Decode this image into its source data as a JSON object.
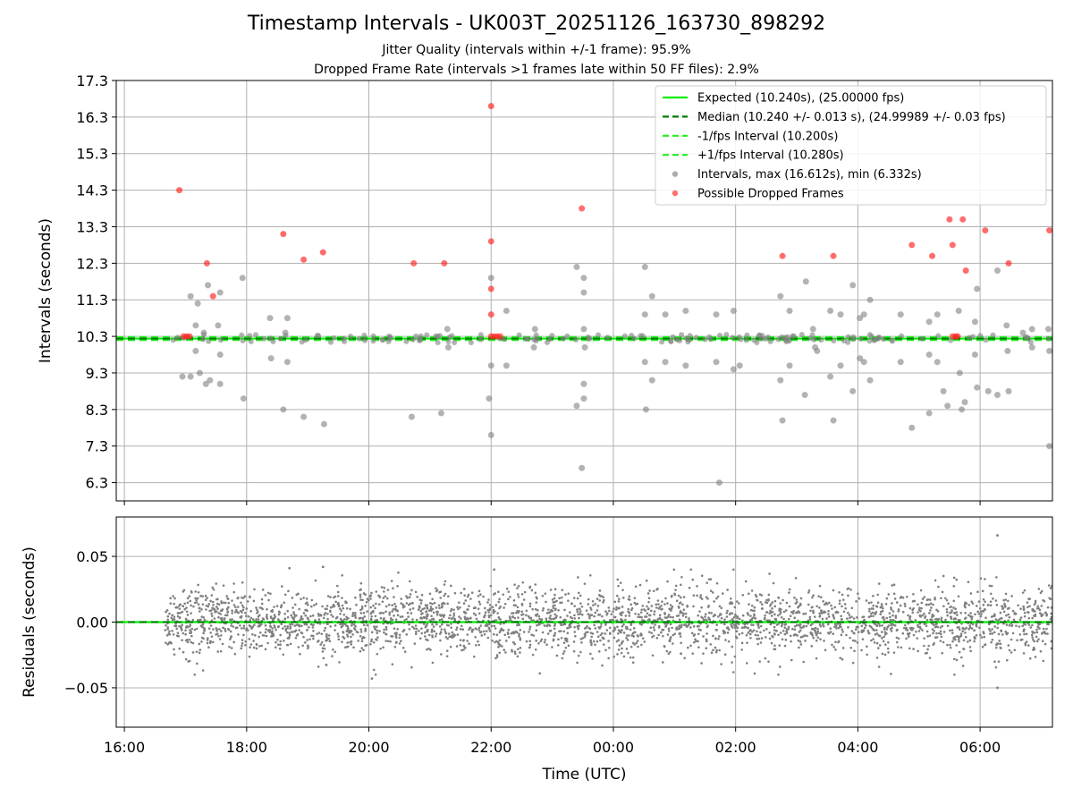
{
  "page": {
    "title": "Timestamp Intervals - UK003T_20251126_163730_898292",
    "subtitle1": "Jitter Quality (intervals within +/-1 frame): 95.9%",
    "subtitle2": "Dropped Frame Rate (intervals >1 frames late within 50 FF files): 2.9%"
  },
  "colors": {
    "expected": "#00ee00",
    "median": "#007a00",
    "fps_band": "#22ee22",
    "intervals": "#808080",
    "dropped": "#ff2020",
    "grid": "#b0b0b0"
  },
  "chart_data": [
    {
      "type": "scatter",
      "title": "Timestamp Intervals - UK003T_20251126_163730_898292",
      "xlabel": "Time (UTC)",
      "ylabel": "Intervals (seconds)",
      "xlim": [
        "2025-11-26 15:52",
        "2025-11-27 07:11"
      ],
      "ylim": [
        5.8,
        17.3
      ],
      "x_ticks": [
        "16:00",
        "18:00",
        "20:00",
        "22:00",
        "00:00",
        "02:00",
        "04:00",
        "06:00"
      ],
      "y_ticks": [
        "6.3",
        "7.3",
        "8.3",
        "9.3",
        "10.3",
        "11.3",
        "12.3",
        "13.3",
        "14.3",
        "15.3",
        "16.3",
        "17.3"
      ],
      "grid": true,
      "legend_position": "top-right",
      "legend": [
        "Expected (10.240s), (25.00000 fps)",
        "Median (10.240 +/- 0.013 s), (24.99989 +/- 0.03 fps)",
        "-1/fps Interval (10.200s)",
        "+1/fps Interval (10.280s)",
        "Intervals, max (16.612s), min (6.332s)",
        "Possible Dropped Frames"
      ],
      "reference_lines": [
        {
          "name": "Expected",
          "y": 10.24,
          "style": "solid"
        },
        {
          "name": "Median",
          "y": 10.24,
          "style": "dashed"
        },
        {
          "name": "-1/fps Interval",
          "y": 10.2,
          "style": "dashed"
        },
        {
          "name": "+1/fps Interval",
          "y": 10.28,
          "style": "dashed"
        }
      ],
      "series": [
        {
          "name": "Intervals, max (16.612s), min (6.332s)",
          "points": [
            [
              "2025-11-26 17:05",
              11.4
            ],
            [
              "2025-11-26 17:12",
              11.2
            ],
            [
              "2025-11-26 17:22",
              11.7
            ],
            [
              "2025-11-26 17:34",
              11.5
            ],
            [
              "2025-11-26 17:56",
              11.9
            ],
            [
              "2025-11-26 17:10",
              10.6
            ],
            [
              "2025-11-26 17:32",
              10.6
            ],
            [
              "2025-11-26 17:18",
              10.4
            ],
            [
              "2025-11-26 16:57",
              9.2
            ],
            [
              "2025-11-26 17:05",
              9.2
            ],
            [
              "2025-11-26 17:10",
              9.9
            ],
            [
              "2025-11-26 17:14",
              9.3
            ],
            [
              "2025-11-26 17:20",
              9.0
            ],
            [
              "2025-11-26 17:24",
              9.1
            ],
            [
              "2025-11-26 17:34",
              9.8
            ],
            [
              "2025-11-26 17:34",
              9.0
            ],
            [
              "2025-11-26 17:57",
              8.6
            ],
            [
              "2025-11-26 18:23",
              10.8
            ],
            [
              "2025-11-26 18:24",
              9.7
            ],
            [
              "2025-11-26 18:36",
              8.3
            ],
            [
              "2025-11-26 18:40",
              10.8
            ],
            [
              "2025-11-26 18:40",
              9.6
            ],
            [
              "2025-11-26 18:56",
              8.1
            ],
            [
              "2025-11-26 19:16",
              7.9
            ],
            [
              "2025-11-26 18:38",
              10.4
            ],
            [
              "2025-11-26 20:42",
              8.1
            ],
            [
              "2025-11-26 21:11",
              8.2
            ],
            [
              "2025-11-26 21:17",
              10.5
            ],
            [
              "2025-11-26 21:18",
              10.0
            ],
            [
              "2025-11-26 22:00",
              11.9
            ],
            [
              "2025-11-26 22:00",
              9.5
            ],
            [
              "2025-11-26 21:58",
              8.6
            ],
            [
              "2025-11-26 22:00",
              7.6
            ],
            [
              "2025-11-26 22:15",
              11.0
            ],
            [
              "2025-11-26 22:15",
              9.5
            ],
            [
              "2025-11-26 22:43",
              10.5
            ],
            [
              "2025-11-26 22:42",
              10.0
            ],
            [
              "2025-11-26 23:24",
              12.2
            ],
            [
              "2025-11-26 23:24",
              8.4
            ],
            [
              "2025-11-26 23:29",
              6.7
            ],
            [
              "2025-11-26 23:31",
              11.9
            ],
            [
              "2025-11-26 23:31",
              11.5
            ],
            [
              "2025-11-26 23:31",
              10.5
            ],
            [
              "2025-11-26 23:32",
              10.0
            ],
            [
              "2025-11-26 23:31",
              9.0
            ],
            [
              "2025-11-26 23:31",
              8.6
            ],
            [
              "2025-11-27 00:31",
              12.2
            ],
            [
              "2025-11-27 00:31",
              10.9
            ],
            [
              "2025-11-27 00:31",
              9.6
            ],
            [
              "2025-11-27 00:32",
              8.3
            ],
            [
              "2025-11-27 00:38",
              11.4
            ],
            [
              "2025-11-27 00:38",
              9.1
            ],
            [
              "2025-11-27 00:51",
              10.9
            ],
            [
              "2025-11-27 00:51",
              9.6
            ],
            [
              "2025-11-27 01:11",
              11.0
            ],
            [
              "2025-11-27 01:11",
              9.5
            ],
            [
              "2025-11-27 01:41",
              10.9
            ],
            [
              "2025-11-27 01:41",
              9.6
            ],
            [
              "2025-11-27 01:44",
              6.3
            ],
            [
              "2025-11-27 01:58",
              11.0
            ],
            [
              "2025-11-27 01:58",
              9.4
            ],
            [
              "2025-11-27 02:04",
              9.5
            ],
            [
              "2025-11-27 02:44",
              11.4
            ],
            [
              "2025-11-27 02:44",
              9.1
            ],
            [
              "2025-11-27 02:46",
              8.0
            ],
            [
              "2025-11-27 02:53",
              11.0
            ],
            [
              "2025-11-27 02:53",
              9.5
            ],
            [
              "2025-11-27 03:09",
              11.8
            ],
            [
              "2025-11-27 03:08",
              8.7
            ],
            [
              "2025-11-27 03:16",
              10.5
            ],
            [
              "2025-11-27 03:18",
              10.0
            ],
            [
              "2025-11-27 03:20",
              9.9
            ],
            [
              "2025-11-27 03:33",
              11.0
            ],
            [
              "2025-11-27 03:33",
              9.2
            ],
            [
              "2025-11-27 03:36",
              8.0
            ],
            [
              "2025-11-27 03:43",
              10.9
            ],
            [
              "2025-11-27 03:43",
              9.5
            ],
            [
              "2025-11-27 03:55",
              11.7
            ],
            [
              "2025-11-27 03:55",
              8.8
            ],
            [
              "2025-11-27 04:02",
              10.8
            ],
            [
              "2025-11-27 04:02",
              9.7
            ],
            [
              "2025-11-27 04:06",
              10.9
            ],
            [
              "2025-11-27 04:06",
              9.6
            ],
            [
              "2025-11-27 04:12",
              11.3
            ],
            [
              "2025-11-27 04:12",
              9.1
            ],
            [
              "2025-11-27 04:42",
              10.9
            ],
            [
              "2025-11-27 04:42",
              9.6
            ],
            [
              "2025-11-27 04:53",
              7.8
            ],
            [
              "2025-11-27 05:10",
              10.7
            ],
            [
              "2025-11-27 05:10",
              9.8
            ],
            [
              "2025-11-27 05:10",
              8.2
            ],
            [
              "2025-11-27 05:18",
              10.9
            ],
            [
              "2025-11-27 05:18",
              9.6
            ],
            [
              "2025-11-27 05:24",
              8.8
            ],
            [
              "2025-11-27 05:28",
              8.4
            ],
            [
              "2025-11-27 05:39",
              11.0
            ],
            [
              "2025-11-27 05:40",
              9.3
            ],
            [
              "2025-11-27 05:45",
              8.5
            ],
            [
              "2025-11-27 05:42",
              8.3
            ],
            [
              "2025-11-27 05:57",
              11.6
            ],
            [
              "2025-11-27 05:57",
              8.9
            ],
            [
              "2025-11-27 05:55",
              10.7
            ],
            [
              "2025-11-27 05:55",
              9.8
            ],
            [
              "2025-11-27 06:08",
              8.8
            ],
            [
              "2025-11-27 06:17",
              12.1
            ],
            [
              "2025-11-27 06:17",
              8.7
            ],
            [
              "2025-11-27 06:26",
              10.6
            ],
            [
              "2025-11-27 06:27",
              9.9
            ],
            [
              "2025-11-27 06:28",
              8.8
            ],
            [
              "2025-11-27 06:42",
              10.4
            ],
            [
              "2025-11-27 06:51",
              10.5
            ],
            [
              "2025-11-27 06:51",
              10.0
            ],
            [
              "2025-11-27 07:07",
              10.5
            ],
            [
              "2025-11-27 07:08",
              9.9
            ],
            [
              "2025-11-27 07:08",
              7.3
            ]
          ]
        },
        {
          "name": "Possible Dropped Frames",
          "points": [
            [
              "2025-11-26 16:54",
              14.3
            ],
            [
              "2025-11-26 17:21",
              12.3
            ],
            [
              "2025-11-26 17:27",
              11.4
            ],
            [
              "2025-11-26 18:36",
              13.1
            ],
            [
              "2025-11-26 18:56",
              12.4
            ],
            [
              "2025-11-26 19:15",
              12.6
            ],
            [
              "2025-11-26 20:44",
              12.3
            ],
            [
              "2025-11-26 21:14",
              12.3
            ],
            [
              "2025-11-26 22:00",
              16.6
            ],
            [
              "2025-11-26 22:00",
              12.9
            ],
            [
              "2025-11-26 22:00",
              11.6
            ],
            [
              "2025-11-26 22:00",
              10.9
            ],
            [
              "2025-11-26 23:29",
              13.8
            ],
            [
              "2025-11-27 02:46",
              12.5
            ],
            [
              "2025-11-27 03:36",
              12.5
            ],
            [
              "2025-11-27 04:53",
              12.8
            ],
            [
              "2025-11-27 05:13",
              12.5
            ],
            [
              "2025-11-27 05:30",
              13.5
            ],
            [
              "2025-11-27 05:33",
              12.8
            ],
            [
              "2025-11-27 05:43",
              13.5
            ],
            [
              "2025-11-27 05:46",
              12.1
            ],
            [
              "2025-11-27 06:05",
              13.2
            ],
            [
              "2025-11-27 06:28",
              12.3
            ],
            [
              "2025-11-27 07:08",
              13.2
            ],
            [
              "2025-11-26 16:58",
              10.3
            ],
            [
              "2025-11-26 17:01",
              10.3
            ],
            [
              "2025-11-26 17:04",
              10.3
            ],
            [
              "2025-11-26 22:00",
              10.3
            ],
            [
              "2025-11-26 22:03",
              10.3
            ],
            [
              "2025-11-26 22:06",
              10.3
            ],
            [
              "2025-11-26 22:09",
              10.3
            ],
            [
              "2025-11-27 05:33",
              10.3
            ],
            [
              "2025-11-27 05:36",
              10.3
            ],
            [
              "2025-11-27 05:38",
              10.3
            ]
          ]
        }
      ]
    },
    {
      "type": "scatter",
      "xlabel": "Time (UTC)",
      "ylabel": "Residuals (seconds)",
      "xlim": [
        "2025-11-26 15:52",
        "2025-11-27 07:11"
      ],
      "ylim": [
        -0.08,
        0.08
      ],
      "x_ticks": [
        "16:00",
        "18:00",
        "20:00",
        "22:00",
        "00:00",
        "02:00",
        "04:00",
        "06:00"
      ],
      "y_ticks": [
        "−0.05",
        "0.00",
        "0.05"
      ],
      "grid": true,
      "reference_lines": [
        {
          "name": "Zero",
          "y": 0.0,
          "style": "dashed"
        }
      ],
      "series": [
        {
          "name": "Residuals",
          "x_range": [
            "2025-11-26 16:40",
            "2025-11-27 07:11"
          ],
          "sample_count": 3200,
          "std": 0.013,
          "outliers": [
            [
              "2025-11-27 06:17",
              0.066
            ],
            [
              "2025-11-27 06:17",
              -0.05
            ],
            [
              "2025-11-26 20:03",
              -0.043
            ],
            [
              "2025-11-26 22:03",
              0.04
            ],
            [
              "2025-11-26 19:15",
              0.042
            ],
            [
              "2025-11-26 18:42",
              0.041
            ]
          ]
        }
      ]
    }
  ]
}
